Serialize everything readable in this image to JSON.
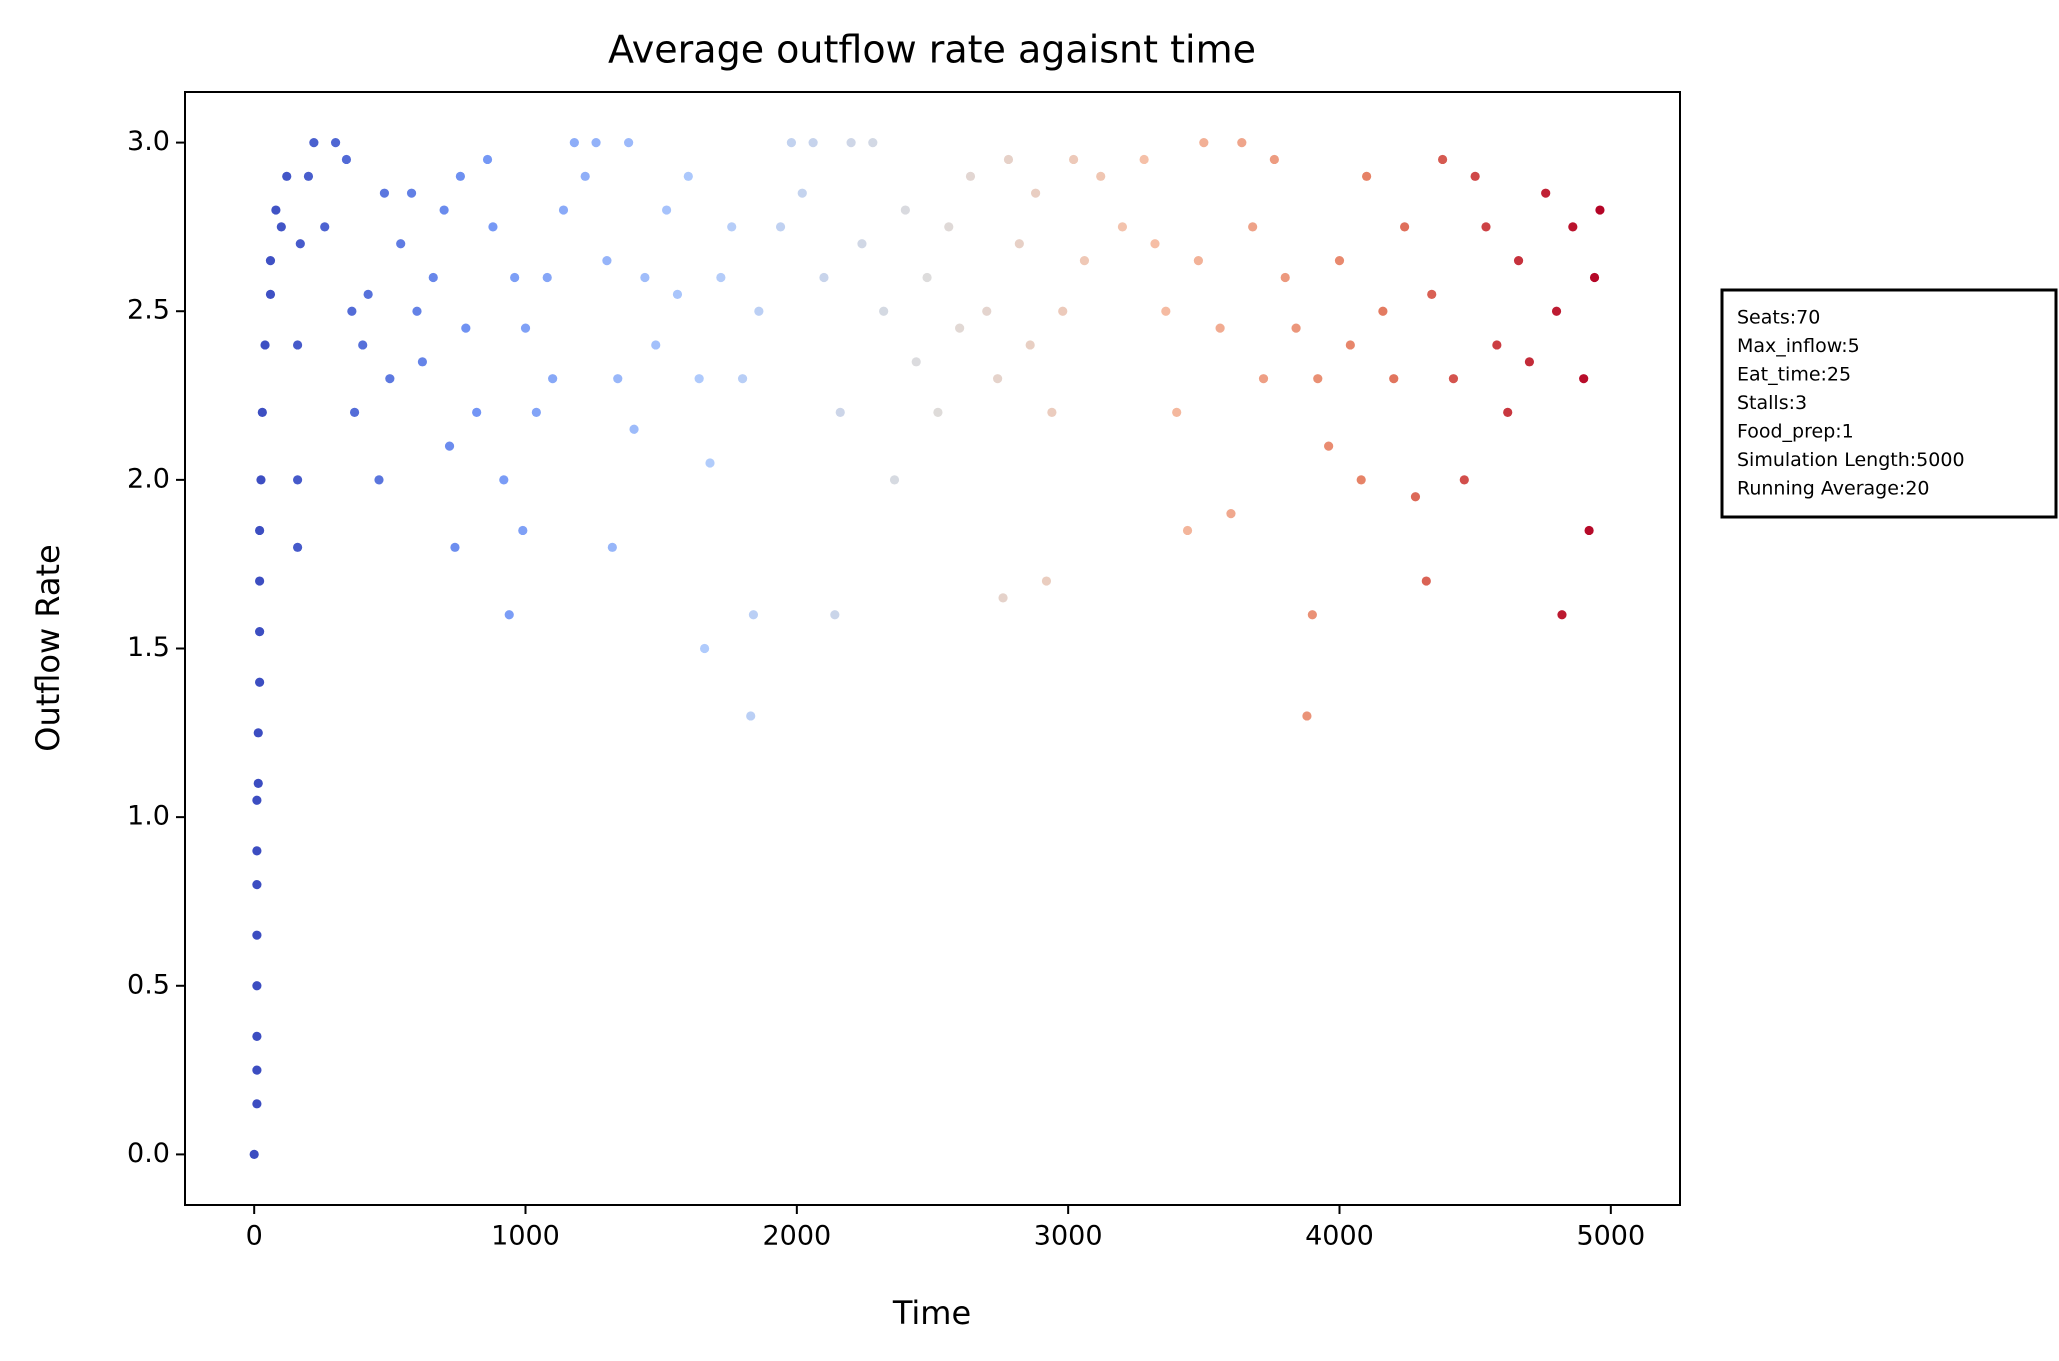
{
  "chart_data": {
    "type": "scatter",
    "title": "Average outflow rate agaisnt time",
    "x_label": "Time",
    "y_label": "Outflow Rate",
    "colormap": [
      "#3b4cc0",
      "#7396f5",
      "#b0cbfc",
      "#dddcdc",
      "#f6bfa6",
      "#e57f63",
      "#b40426"
    ],
    "x": [
      0,
      10,
      10,
      10,
      10,
      10,
      10,
      10,
      10,
      15,
      15,
      20,
      20,
      20,
      20,
      25,
      30,
      40,
      60,
      60,
      80,
      100,
      120,
      160,
      160,
      160,
      170,
      200,
      220,
      260,
      300,
      340,
      360,
      370,
      400,
      420,
      460,
      480,
      500,
      540,
      580,
      600,
      620,
      660,
      700,
      720,
      740,
      760,
      780,
      820,
      860,
      880,
      920,
      940,
      960,
      990,
      1000,
      1040,
      1080,
      1100,
      1140,
      1180,
      1220,
      1260,
      1300,
      1320,
      1340,
      1380,
      1400,
      1440,
      1480,
      1520,
      1560,
      1600,
      1640,
      1660,
      1680,
      1720,
      1760,
      1800,
      1830,
      1840,
      1860,
      1940,
      1980,
      2020,
      2060,
      2100,
      2140,
      2160,
      2200,
      2240,
      2280,
      2320,
      2360,
      2400,
      2440,
      2480,
      2520,
      2560,
      2600,
      2640,
      2700,
      2740,
      2760,
      2780,
      2820,
      2860,
      2880,
      2920,
      2940,
      2980,
      3020,
      3060,
      3120,
      3200,
      3280,
      3320,
      3360,
      3400,
      3440,
      3480,
      3500,
      3560,
      3600,
      3640,
      3680,
      3720,
      3760,
      3800,
      3840,
      3880,
      3900,
      3920,
      3960,
      4000,
      4040,
      4080,
      4100,
      4160,
      4200,
      4240,
      4280,
      4320,
      4340,
      4380,
      4420,
      4460,
      4500,
      4540,
      4580,
      4620,
      4660,
      4700,
      4760,
      4800,
      4820,
      4860,
      4900,
      4920,
      4940,
      4960
    ],
    "y": [
      0,
      0.15,
      0.25,
      0.35,
      0.5,
      0.65,
      0.8,
      0.9,
      1.05,
      1.1,
      1.25,
      1.4,
      1.55,
      1.7,
      1.85,
      2.0,
      2.2,
      2.4,
      2.55,
      2.65,
      2.8,
      2.75,
      2.9,
      1.8,
      2.0,
      2.4,
      2.7,
      2.9,
      3.0,
      2.75,
      3.0,
      2.95,
      2.5,
      2.2,
      2.4,
      2.55,
      2.0,
      2.85,
      2.3,
      2.7,
      2.85,
      2.5,
      2.35,
      2.6,
      2.8,
      2.1,
      1.8,
      2.9,
      2.45,
      2.2,
      2.95,
      2.75,
      2.0,
      1.6,
      2.6,
      1.85,
      2.45,
      2.2,
      2.6,
      2.3,
      2.8,
      3.0,
      2.9,
      3.0,
      2.65,
      1.8,
      2.3,
      3.0,
      2.15,
      2.6,
      2.4,
      2.8,
      2.55,
      2.9,
      2.3,
      1.5,
      2.05,
      2.6,
      2.75,
      2.3,
      1.3,
      1.6,
      2.5,
      2.75,
      3.0,
      2.85,
      3.0,
      2.6,
      1.6,
      2.2,
      3.0,
      2.7,
      3.0,
      2.5,
      2.0,
      2.8,
      2.35,
      2.6,
      2.2,
      2.75,
      2.45,
      2.9,
      2.5,
      2.3,
      1.65,
      2.95,
      2.7,
      2.4,
      2.85,
      1.7,
      2.2,
      2.5,
      2.95,
      2.65,
      2.9,
      2.75,
      2.95,
      2.7,
      2.5,
      2.2,
      1.85,
      2.65,
      3.0,
      2.45,
      1.9,
      3.0,
      2.75,
      2.3,
      2.95,
      2.6,
      2.45,
      1.3,
      1.6,
      2.3,
      2.1,
      2.65,
      2.4,
      2.0,
      2.9,
      2.5,
      2.3,
      2.75,
      1.95,
      1.7,
      2.55,
      2.95,
      2.3,
      2.0,
      2.9,
      2.75,
      2.4,
      2.2,
      2.65,
      2.35,
      2.85,
      2.5,
      1.6,
      2.75,
      2.3,
      1.85,
      2.6,
      2.8
    ],
    "xlim": [
      -255,
      5255
    ],
    "ylim": [
      -0.15,
      3.15
    ],
    "xticks": [
      0,
      1000,
      2000,
      3000,
      4000,
      5000
    ],
    "yticks": [
      {
        "value": 0,
        "label": "0.0"
      },
      0.5,
      {
        "value": 1,
        "label": "1.0"
      },
      1.5,
      {
        "value": 2,
        "label": "2.0"
      },
      2.5,
      {
        "value": 3,
        "label": "3.0"
      }
    ],
    "annotation_lines": [
      "Seats:70",
      "Max_inflow:5",
      "Eat_time:25",
      "Stalls:3",
      "Food_prep:1",
      "Simulation Length:5000",
      "Running Average:20"
    ]
  }
}
